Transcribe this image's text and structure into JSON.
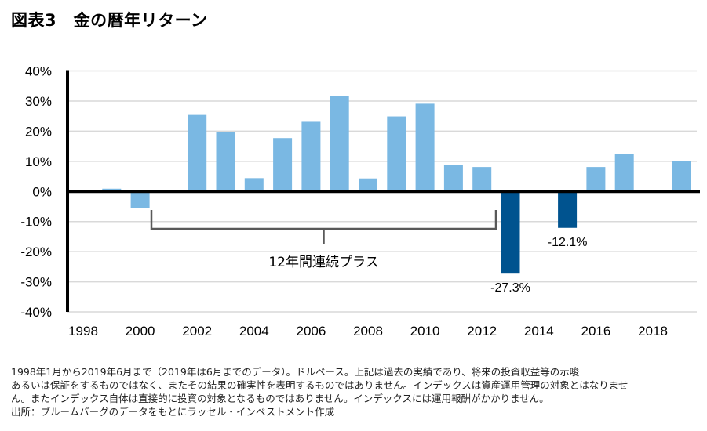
{
  "title": "図表3　金の暦年リターン",
  "chart_data": {
    "type": "bar",
    "title": "金の暦年リターン",
    "xlabel": "",
    "ylabel": "",
    "ylim": [
      -40,
      40
    ],
    "yticks": [
      40,
      30,
      20,
      10,
      0,
      -10,
      -20,
      -30,
      -40
    ],
    "ytick_labels": [
      "40%",
      "30%",
      "20%",
      "10%",
      "0%",
      "-10%",
      "-20%",
      "-30%",
      "-40%"
    ],
    "categories": [
      "1998",
      "1999",
      "2000",
      "2001",
      "2002",
      "2003",
      "2004",
      "2005",
      "2006",
      "2007",
      "2008",
      "2009",
      "2010",
      "2011",
      "2012",
      "2013",
      "2014",
      "2015",
      "2016",
      "2017",
      "2018",
      "2019"
    ],
    "xtick_labels": [
      "1998",
      "2000",
      "2002",
      "2004",
      "2006",
      "2008",
      "2010",
      "2012",
      "2014",
      "2016",
      "2018"
    ],
    "values": [
      null,
      0.9,
      -5.4,
      null,
      25.4,
      19.7,
      4.4,
      17.7,
      23.1,
      31.7,
      4.3,
      24.9,
      29.1,
      8.8,
      8.1,
      -27.3,
      null,
      -12.1,
      8.1,
      12.5,
      null,
      10.1
    ],
    "data_labels": {
      "2013": "-27.3%",
      "2015": "-12.1%"
    },
    "annotation": {
      "text": "12年間連続プラス",
      "from": "2001",
      "to": "2012"
    },
    "grid": true,
    "colors": {
      "positive": "#7ab8e3",
      "highlight": "#00538f",
      "grid": "#d9d9d9",
      "axis": "#000000",
      "bracket": "#595959"
    }
  },
  "notes": [
    "1998年1月から2019年6月まで（2019年は6月までのデータ）。ドルベース。上記は過去の実績であり、将来の投資収益等の示唆",
    "あるいは保証をするものではなく、またその結果の確実性を表明するものではありません。インデックスは資産運用管理の対象とはなりませ",
    "ん。またインデックス自体は直接的に投資の対象となるものではありません。インデックスには運用報酬がかかりません。",
    "出所：ブルームバーグのデータをもとにラッセル・インベストメント作成"
  ]
}
